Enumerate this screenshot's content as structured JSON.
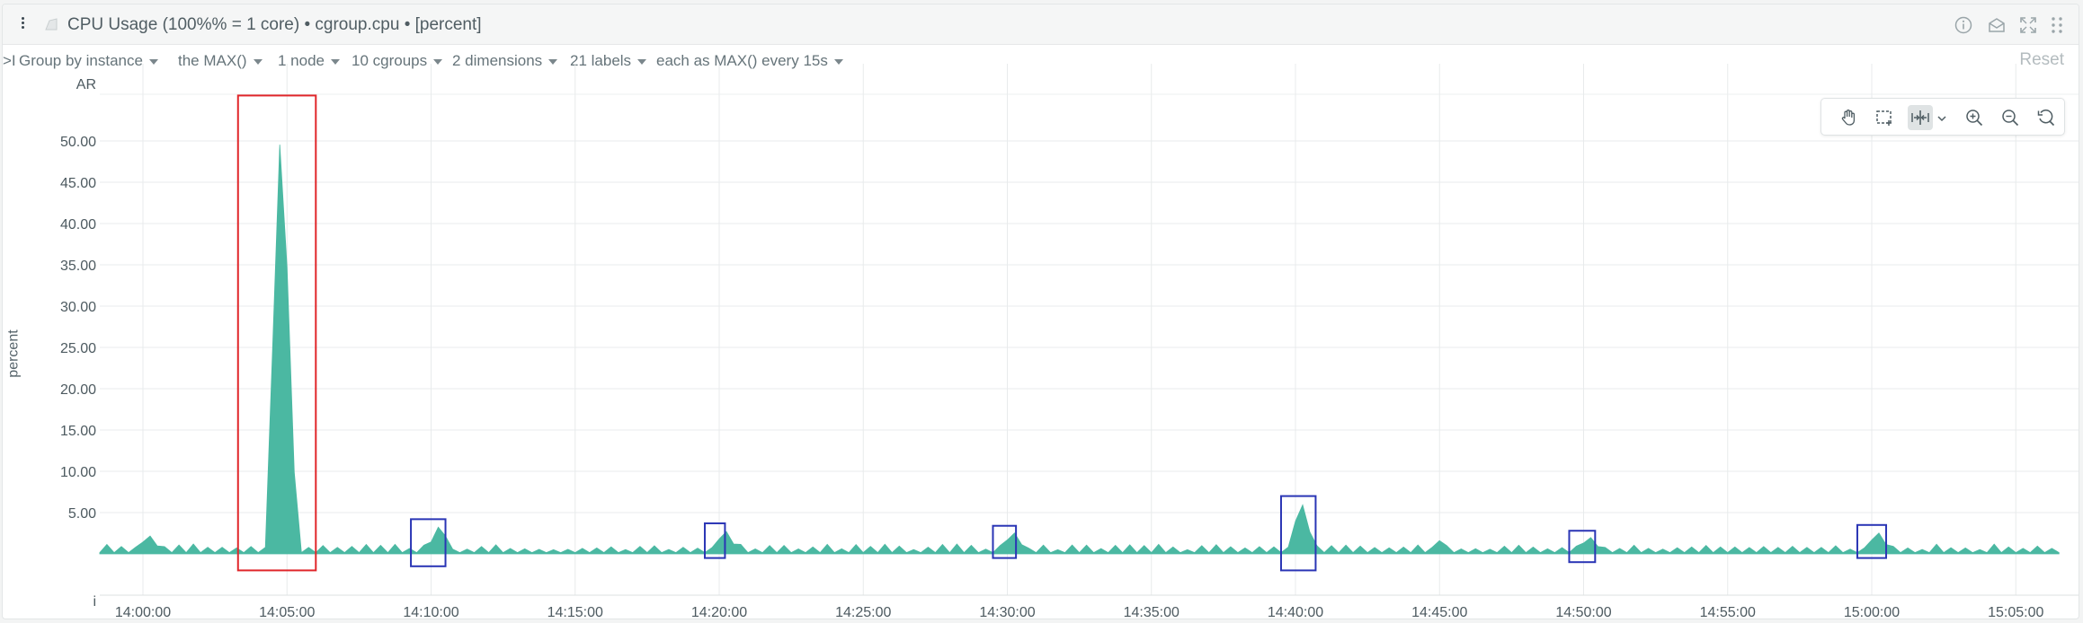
{
  "header": {
    "title": "CPU Usage (100%% = 1 core) • cgroup.cpu • [percent]",
    "icons": [
      "kebab-menu-icon",
      "chart-icon",
      "info-icon",
      "drop-icon",
      "expand-icon",
      "drag-icon"
    ]
  },
  "toolbar": {
    "collapse": ">I",
    "group_by": "Group by instance",
    "aggregate": "the MAX()",
    "nodes": "1 node",
    "cgroups": "10 cgroups",
    "dimensions": "2 dimensions",
    "labels": "21 labels",
    "time_agg": "each as MAX() every 15s",
    "reset": "Reset"
  },
  "zoom_toolbar": {
    "icons": [
      "pan-icon",
      "select-area-icon",
      "selection-icon",
      "chevron-down-icon",
      "zoom-in-icon",
      "zoom-out-icon",
      "reset-zoom-icon"
    ]
  },
  "chart": {
    "ylabel": "percent",
    "top_label": "AR",
    "bottom_label": "i",
    "series_color": "#4bb8a2",
    "highlight_colors": {
      "major": "#e0262a",
      "minor": "#2a35b5"
    }
  },
  "chart_data": {
    "type": "area",
    "ylabel": "percent",
    "yticks": [
      "5.00",
      "10.00",
      "15.00",
      "20.00",
      "25.00",
      "30.00",
      "35.00",
      "40.00",
      "45.00",
      "50.00"
    ],
    "ylim": [
      0,
      55
    ],
    "xticks": [
      "14:00:00",
      "14:05:00",
      "14:10:00",
      "14:15:00",
      "14:20:00",
      "14:25:00",
      "14:30:00",
      "14:35:00",
      "14:40:00",
      "14:45:00",
      "14:50:00",
      "14:55:00",
      "15:00:00",
      "15:05:00"
    ],
    "x_range_minutes": [
      -1.5,
      66.5
    ],
    "baseline_level": 0.5,
    "spikes": [
      {
        "t": 0.2,
        "value": 2.4
      },
      {
        "t": 4.8,
        "value": 54.5
      },
      {
        "t": 10.3,
        "value": 3.6
      },
      {
        "t": 20.2,
        "value": 3.0
      },
      {
        "t": 30.2,
        "value": 2.8
      },
      {
        "t": 40.2,
        "value": 6.6
      },
      {
        "t": 45.0,
        "value": 1.6
      },
      {
        "t": 50.2,
        "value": 2.2
      },
      {
        "t": 60.2,
        "value": 2.8
      }
    ],
    "highlights": [
      {
        "kind": "major",
        "t0": 3.3,
        "t1": 6.0,
        "y0": -2.0,
        "y1": 55.5
      },
      {
        "kind": "minor",
        "t0": 9.3,
        "t1": 10.5,
        "y0": -1.5,
        "y1": 4.2
      },
      {
        "kind": "minor",
        "t0": 19.5,
        "t1": 20.2,
        "y0": -0.5,
        "y1": 3.7
      },
      {
        "kind": "minor",
        "t0": 29.5,
        "t1": 30.3,
        "y0": -0.5,
        "y1": 3.4
      },
      {
        "kind": "minor",
        "t0": 39.5,
        "t1": 40.7,
        "y0": -2.0,
        "y1": 7.0
      },
      {
        "kind": "minor",
        "t0": 49.5,
        "t1": 50.4,
        "y0": -1.0,
        "y1": 2.8
      },
      {
        "kind": "minor",
        "t0": 59.5,
        "t1": 60.5,
        "y0": -0.5,
        "y1": 3.5
      }
    ],
    "grid": true,
    "legend": "none"
  }
}
